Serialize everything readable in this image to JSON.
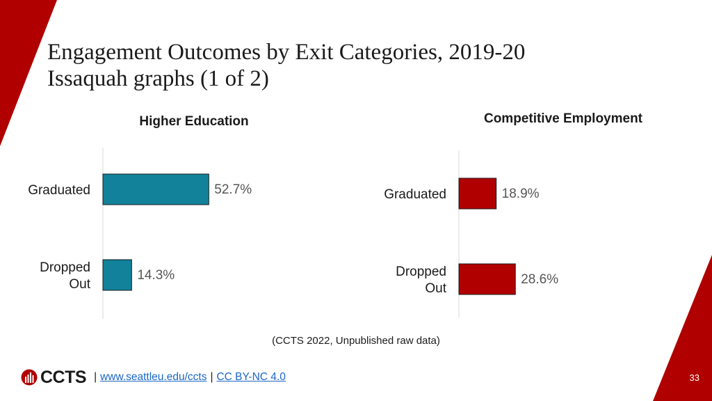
{
  "slide": {
    "title_line1": "Engagement Outcomes by Exit Categories, 2019-20",
    "title_line2": "Issaquah graphs (1 of 2)",
    "source": "(CCTS 2022, Unpublished raw data)",
    "page_number": "33",
    "accent_color": "#b00000"
  },
  "footer": {
    "logo_text": "CCTS",
    "link1": "www.seattleu.edu/ccts",
    "separator": "|",
    "link2": "CC BY-NC 4.0"
  },
  "chart_data": [
    {
      "type": "bar",
      "orientation": "horizontal",
      "title": "Higher Education",
      "categories": [
        "Graduated",
        "Dropped Out"
      ],
      "values": [
        52.7,
        14.3
      ],
      "value_labels": [
        "52.7%",
        "14.3%"
      ],
      "color": "#11829a",
      "xlim": [
        0,
        100
      ],
      "grid": false
    },
    {
      "type": "bar",
      "orientation": "horizontal",
      "title": "Competitive Employment",
      "categories": [
        "Graduated",
        "Dropped Out"
      ],
      "values": [
        18.9,
        28.6
      ],
      "value_labels": [
        "18.9%",
        "28.6%"
      ],
      "color": "#b00000",
      "xlim": [
        0,
        100
      ],
      "grid": false
    }
  ]
}
